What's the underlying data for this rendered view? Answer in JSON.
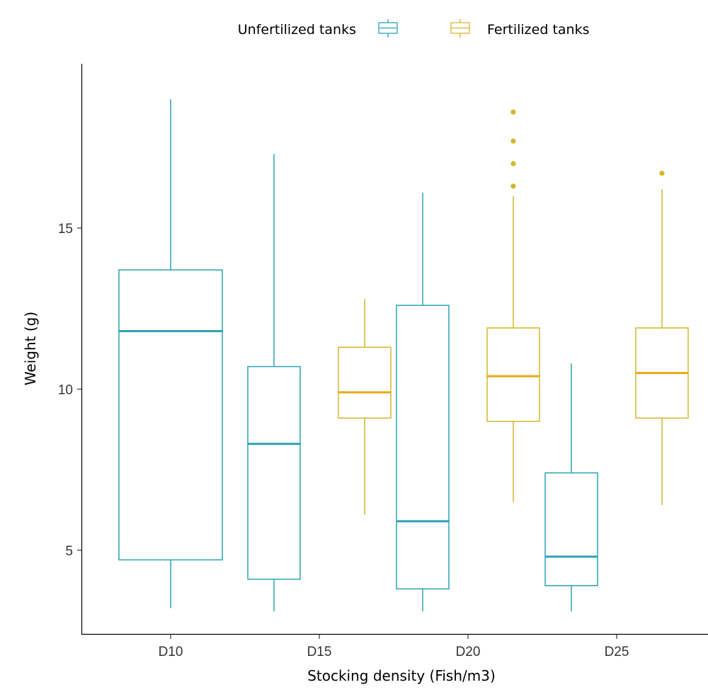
{
  "chart_data": {
    "type": "boxplot",
    "xlabel": "Stocking density (Fish/m3)",
    "ylabel": "Weight (g)",
    "categories": [
      "D10",
      "D15",
      "D20",
      "D25"
    ],
    "ylim": [
      2.4,
      20.1
    ],
    "yticks": [
      5,
      10,
      15
    ],
    "grid": false,
    "legend": {
      "placement": "top"
    },
    "series": [
      {
        "name": "Unfertilized tanks",
        "color": "#2aa3b4",
        "boxes": [
          {
            "category": "D10",
            "min": 3.2,
            "q1": 4.7,
            "median": 11.8,
            "q3": 13.7,
            "max": 19.0,
            "outliers": []
          },
          {
            "category": "D15",
            "min": 3.1,
            "q1": 4.1,
            "median": 8.3,
            "q3": 10.7,
            "max": 17.3,
            "outliers": []
          },
          {
            "category": "D20",
            "min": 3.1,
            "q1": 3.8,
            "median": 5.9,
            "q3": 12.6,
            "max": 16.1,
            "outliers": []
          },
          {
            "category": "D25",
            "min": 3.1,
            "q1": 3.9,
            "median": 4.8,
            "q3": 7.4,
            "max": 10.8,
            "outliers": []
          }
        ]
      },
      {
        "name": "Fertilized tanks",
        "color": "#d4b72a",
        "medianColor": "#e8a817",
        "boxes": [
          {
            "category": "D10",
            "present": false
          },
          {
            "category": "D15",
            "min": 6.1,
            "q1": 9.1,
            "median": 9.9,
            "q3": 11.3,
            "max": 12.8,
            "outliers": []
          },
          {
            "category": "D20",
            "min": 6.5,
            "q1": 9.0,
            "median": 10.4,
            "q3": 11.9,
            "max": 16.0,
            "outliers": [
              16.3,
              17.0,
              17.7,
              18.6
            ]
          },
          {
            "category": "D25",
            "min": 6.4,
            "q1": 9.1,
            "median": 10.5,
            "q3": 11.9,
            "max": 16.2,
            "outliers": [
              16.7
            ]
          }
        ]
      }
    ]
  }
}
